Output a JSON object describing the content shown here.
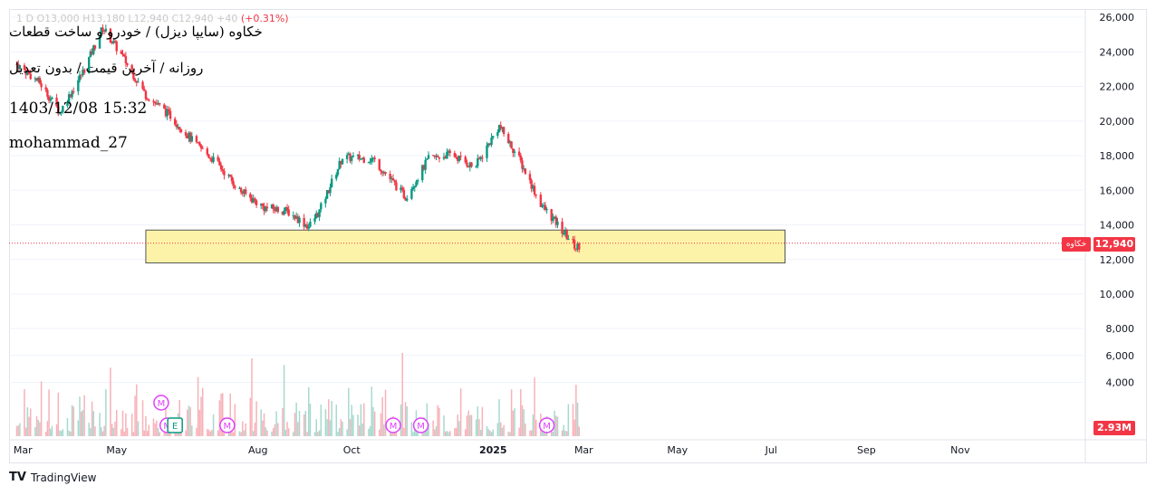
{
  "header": {
    "ohlc_text": "1 D O13,000 H13,180 L12,940 C12,940 +40",
    "change_text": "(+0.31%)",
    "title_line1": "خکاوه (سایپا دیزل) / خودرو و ساخت قطعات",
    "title_line2": "روزانه / آخرین قیمت / بدون تعدیل",
    "timestamp": "1403/12/08 15:32",
    "author": "mohammad_27"
  },
  "price_tags": {
    "symbol": "خکاوه",
    "last_price": "12,940",
    "volume": "2.93M"
  },
  "brand": {
    "name": "TradingView",
    "logo": "TV"
  },
  "colors": {
    "up": "#089981",
    "down": "#f23645",
    "zone_fill": "#fdf3a8",
    "marker": "#e040fb",
    "earnings": "#089981"
  },
  "chart_data": {
    "type": "candlestick",
    "x_labels": [
      "Mar",
      "May",
      "Aug",
      "Oct",
      "2025",
      "Mar",
      "May",
      "Jul",
      "Sep",
      "Nov"
    ],
    "y_ticks": [
      "26,000",
      "24,000",
      "22,000",
      "20,000",
      "18,000",
      "16,000",
      "14,000",
      "12,000",
      "10,000",
      "8,000",
      "6,000",
      "4,000"
    ],
    "price_range": [
      8800,
      26500
    ],
    "last_price": 12940,
    "support_zone": {
      "from_date": "2024-05-20",
      "to_date": "2025-07-10",
      "low": 11800,
      "high": 13700
    },
    "price_path": [
      {
        "date": "2024-02-26",
        "close": 23300
      },
      {
        "date": "2024-03-12",
        "close": 22200
      },
      {
        "date": "2024-03-25",
        "close": 20500
      },
      {
        "date": "2024-04-10",
        "close": 23000
      },
      {
        "date": "2024-04-22",
        "close": 25400
      },
      {
        "date": "2024-05-05",
        "close": 23700
      },
      {
        "date": "2024-05-20",
        "close": 21500
      },
      {
        "date": "2024-06-05",
        "close": 20300
      },
      {
        "date": "2024-06-20",
        "close": 18800
      },
      {
        "date": "2024-07-05",
        "close": 17600
      },
      {
        "date": "2024-07-20",
        "close": 16000
      },
      {
        "date": "2024-08-05",
        "close": 15000
      },
      {
        "date": "2024-08-20",
        "close": 14800
      },
      {
        "date": "2024-09-03",
        "close": 13900
      },
      {
        "date": "2024-09-10",
        "close": 14800
      },
      {
        "date": "2024-09-25",
        "close": 17900
      },
      {
        "date": "2024-10-15",
        "close": 17800
      },
      {
        "date": "2024-11-05",
        "close": 15600
      },
      {
        "date": "2024-11-20",
        "close": 17800
      },
      {
        "date": "2024-12-05",
        "close": 18100
      },
      {
        "date": "2024-12-20",
        "close": 17300
      },
      {
        "date": "2025-01-05",
        "close": 19700
      },
      {
        "date": "2025-01-18",
        "close": 17800
      },
      {
        "date": "2025-02-01",
        "close": 15200
      },
      {
        "date": "2025-02-12",
        "close": 14000
      },
      {
        "date": "2025-02-24",
        "close": 12700
      },
      {
        "date": "2025-02-28",
        "close": 12940
      }
    ],
    "volume_range": [
      0,
      9500
    ],
    "volume_ticks": [
      "8,000",
      "6,000",
      "4,000"
    ],
    "last_volume": "2.93M",
    "event_markers": [
      {
        "date": "2024-05-30",
        "label": "M"
      },
      {
        "date": "2024-06-03",
        "label": "M"
      },
      {
        "date": "2024-06-08",
        "label": "E"
      },
      {
        "date": "2024-07-12",
        "label": "M"
      },
      {
        "date": "2024-10-28",
        "label": "M"
      },
      {
        "date": "2024-11-15",
        "label": "M"
      },
      {
        "date": "2025-02-05",
        "label": "M"
      }
    ]
  }
}
